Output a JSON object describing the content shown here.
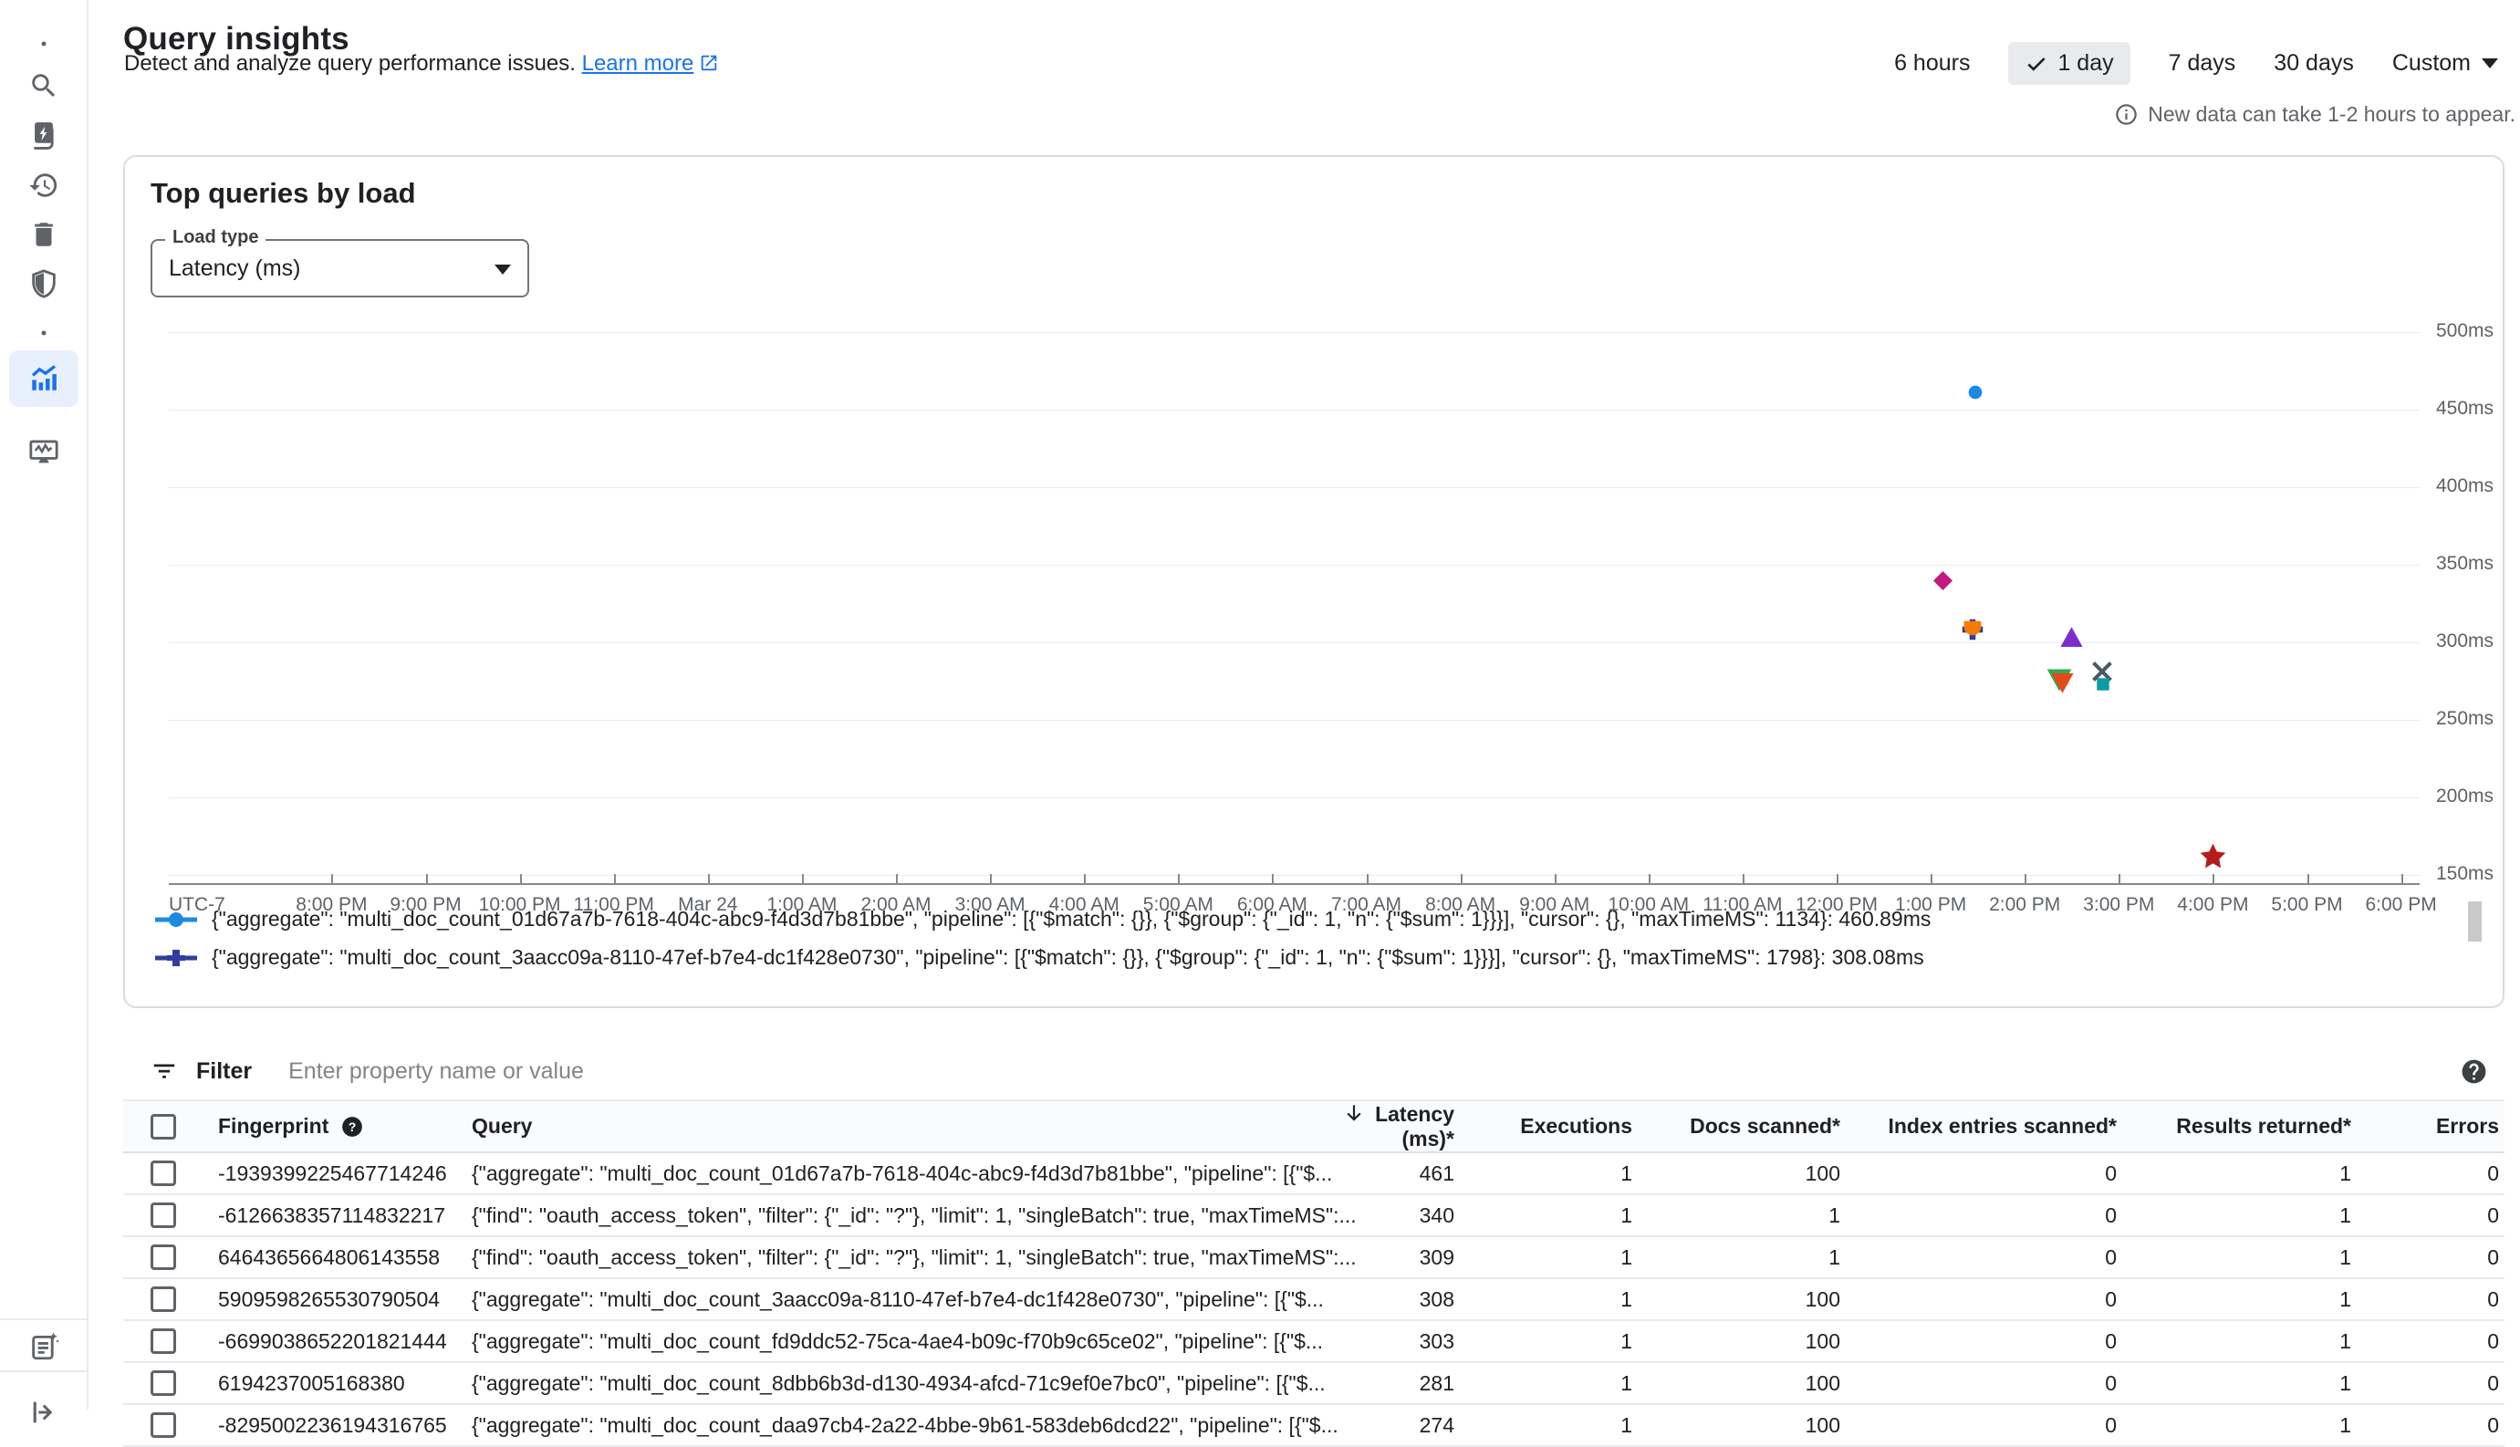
{
  "page": {
    "title": "Query insights",
    "subtitle": "Detect and analyze query performance issues.",
    "learn_more": "Learn more",
    "notice": "New data can take 1-2 hours to appear."
  },
  "time_range": {
    "options_before": [
      "6 hours"
    ],
    "selected": "1 day",
    "options_after": [
      "7 days",
      "30 days"
    ],
    "custom": "Custom"
  },
  "sidebar": {
    "top_items": [
      {
        "name": "dot-top",
        "icon": "dot"
      },
      {
        "name": "search",
        "icon": "search"
      },
      {
        "name": "documents",
        "icon": "doc-bolt"
      },
      {
        "name": "history",
        "icon": "history"
      },
      {
        "name": "delete",
        "icon": "trash"
      },
      {
        "name": "security",
        "icon": "shield"
      },
      {
        "name": "dot-middle",
        "icon": "dot"
      },
      {
        "name": "query-insights",
        "icon": "insights",
        "active": true
      },
      {
        "name": "system-insights",
        "icon": "monitor"
      }
    ],
    "bottom_items": [
      {
        "name": "release-notes",
        "icon": "note-sparkle"
      },
      {
        "name": "collapse-nav",
        "icon": "collapse"
      }
    ]
  },
  "card": {
    "title": "Top queries by load",
    "load_type_label": "Load type",
    "load_type_value": "Latency (ms)"
  },
  "chart_data": {
    "type": "scatter",
    "title": "Top queries by load",
    "timezone_label": "UTC-7",
    "x_axis": {
      "ticks": [
        "8:00 PM",
        "9:00 PM",
        "10:00 PM",
        "11:00 PM",
        "Mar 24",
        "1:00 AM",
        "2:00 AM",
        "3:00 AM",
        "4:00 AM",
        "5:00 AM",
        "6:00 AM",
        "7:00 AM",
        "8:00 AM",
        "9:00 AM",
        "10:00 AM",
        "11:00 AM",
        "12:00 PM",
        "1:00 PM",
        "2:00 PM",
        "3:00 PM",
        "4:00 PM",
        "5:00 PM",
        "6:00 PM"
      ]
    },
    "y_axis": {
      "ticks": [
        "500ms",
        "450ms",
        "400ms",
        "350ms",
        "300ms",
        "250ms",
        "200ms",
        "150ms"
      ],
      "min": 150,
      "max": 500,
      "unit": "ms"
    },
    "grid": "horizontal",
    "legend_position": "bottom",
    "series": [
      {
        "marker": "circle",
        "color": "#1e88e5",
        "points": [
          {
            "time": "1:28 PM",
            "h": 17.47,
            "latency_ms": 460.89
          }
        ]
      },
      {
        "marker": "plus",
        "color": "#303f9f",
        "points": [
          {
            "time": "1:27 PM",
            "h": 17.45,
            "latency_ms": 308.08
          }
        ]
      },
      {
        "marker": "diamond",
        "color": "#c51884",
        "points": [
          {
            "time": "1:08 PM",
            "h": 17.13,
            "latency_ms": 340
          }
        ]
      },
      {
        "marker": "pentagon",
        "color": "#f57c00",
        "points": [
          {
            "time": "1:27 PM",
            "h": 17.45,
            "latency_ms": 309
          }
        ]
      },
      {
        "marker": "triangle-up",
        "color": "#7d2ec9",
        "points": [
          {
            "time": "2:30 PM",
            "h": 18.5,
            "latency_ms": 303
          }
        ]
      },
      {
        "marker": "x",
        "color": "#455a64",
        "points": [
          {
            "time": "2:49 PM",
            "h": 18.82,
            "latency_ms": 281
          }
        ]
      },
      {
        "marker": "triangle-down",
        "color": "#34a853",
        "points": [
          {
            "time": "2:22 PM",
            "h": 18.37,
            "latency_ms": 276
          }
        ]
      },
      {
        "marker": "triangle-down",
        "color": "#e64a19",
        "points": [
          {
            "time": "2:24 PM",
            "h": 18.4,
            "latency_ms": 274
          }
        ]
      },
      {
        "marker": "square",
        "color": "#0e9aa7",
        "points": [
          {
            "time": "2:50 PM",
            "h": 18.83,
            "latency_ms": 273
          }
        ]
      },
      {
        "marker": "star",
        "color": "#b71c1c",
        "points": [
          {
            "time": "4:00 PM",
            "h": 20.0,
            "latency_ms": 162
          }
        ]
      }
    ],
    "legend": [
      {
        "marker": "circle",
        "color": "#1e88e5",
        "query": "{\"aggregate\": \"multi_doc_count_01d67a7b-7618-404c-abc9-f4d3d7b81bbe\", \"pipeline\": [{\"$match\": {}}, {\"$group\": {\"_id\": 1, \"n\": {\"$sum\": 1}}}], \"cursor\": {}, \"maxTimeMS\": 1134}",
        "value": "460.89ms"
      },
      {
        "marker": "plus",
        "color": "#303f9f",
        "query": "{\"aggregate\": \"multi_doc_count_3aacc09a-8110-47ef-b7e4-dc1f428e0730\", \"pipeline\": [{\"$match\": {}}, {\"$group\": {\"_id\": 1, \"n\": {\"$sum\": 1}}}], \"cursor\": {}, \"maxTimeMS\": 1798}",
        "value": "308.08ms"
      }
    ]
  },
  "filter": {
    "label": "Filter",
    "placeholder": "Enter property name or value"
  },
  "table": {
    "columns": [
      "Fingerprint",
      "Query",
      "Latency (ms)*",
      "Executions",
      "Docs scanned*",
      "Index entries scanned*",
      "Results returned*",
      "Errors"
    ],
    "sorted_column": "Latency (ms)*",
    "sort_direction": "desc",
    "rows": [
      {
        "fingerprint": "-1939399225467714246",
        "query": "{\"aggregate\": \"multi_doc_count_01d67a7b-7618-404c-abc9-f4d3d7b81bbe\", \"pipeline\": [{\"$...",
        "latency": "461",
        "executions": "1",
        "docs_scanned": "100",
        "index_entries_scanned": "0",
        "results_returned": "1",
        "errors": "0"
      },
      {
        "fingerprint": "-6126638357114832217",
        "query": "{\"find\": \"oauth_access_token\", \"filter\": {\"_id\": \"?\"}, \"limit\": 1, \"singleBatch\": true, \"maxTimeMS\":...",
        "latency": "340",
        "executions": "1",
        "docs_scanned": "1",
        "index_entries_scanned": "0",
        "results_returned": "1",
        "errors": "0"
      },
      {
        "fingerprint": "6464365664806143558",
        "query": "{\"find\": \"oauth_access_token\", \"filter\": {\"_id\": \"?\"}, \"limit\": 1, \"singleBatch\": true, \"maxTimeMS\":...",
        "latency": "309",
        "executions": "1",
        "docs_scanned": "1",
        "index_entries_scanned": "0",
        "results_returned": "1",
        "errors": "0"
      },
      {
        "fingerprint": "5909598265530790504",
        "query": "{\"aggregate\": \"multi_doc_count_3aacc09a-8110-47ef-b7e4-dc1f428e0730\", \"pipeline\": [{\"$...",
        "latency": "308",
        "executions": "1",
        "docs_scanned": "100",
        "index_entries_scanned": "0",
        "results_returned": "1",
        "errors": "0"
      },
      {
        "fingerprint": "-6699038652201821444",
        "query": "{\"aggregate\": \"multi_doc_count_fd9ddc52-75ca-4ae4-b09c-f70b9c65ce02\", \"pipeline\": [{\"$...",
        "latency": "303",
        "executions": "1",
        "docs_scanned": "100",
        "index_entries_scanned": "0",
        "results_returned": "1",
        "errors": "0"
      },
      {
        "fingerprint": "6194237005168380",
        "query": "{\"aggregate\": \"multi_doc_count_8dbb6b3d-d130-4934-afcd-71c9ef0e7bc0\", \"pipeline\": [{\"$...",
        "latency": "281",
        "executions": "1",
        "docs_scanned": "100",
        "index_entries_scanned": "0",
        "results_returned": "1",
        "errors": "0"
      },
      {
        "fingerprint": "-8295002236194316765",
        "query": "{\"aggregate\": \"multi_doc_count_daa97cb4-2a22-4bbe-9b61-583deb6dcd22\", \"pipeline\": [{\"$...",
        "latency": "274",
        "executions": "1",
        "docs_scanned": "100",
        "index_entries_scanned": "0",
        "results_returned": "1",
        "errors": "0"
      }
    ]
  }
}
